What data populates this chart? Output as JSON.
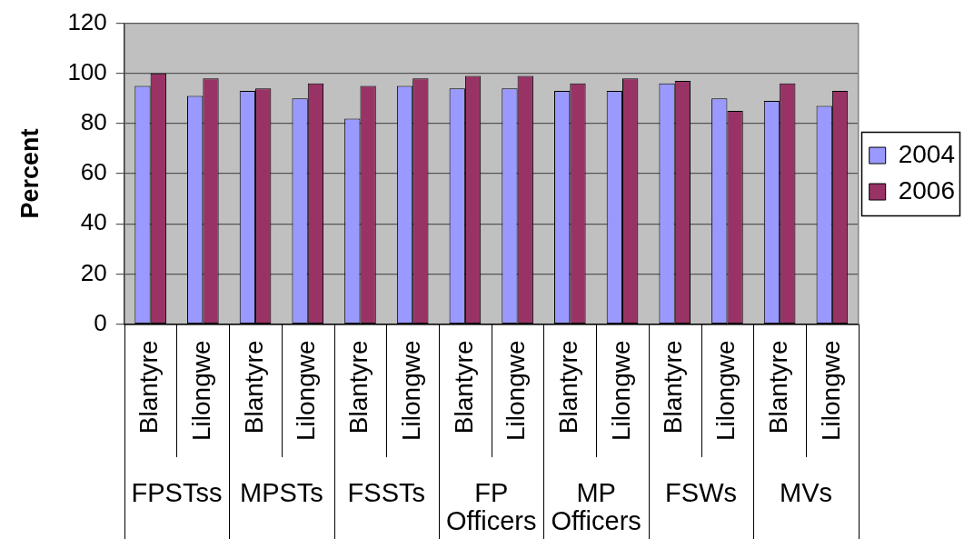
{
  "chart_data": {
    "type": "bar",
    "ylabel": "Percent",
    "categories": [
      "Blantyre",
      "Lilongwe",
      "Blantyre",
      "Lilongwe",
      "Blantyre",
      "Lilongwe",
      "Blantyre",
      "Lilongwe",
      "Blantyre",
      "Lilongwe",
      "Blantyre",
      "Lilongwe",
      "Blantyre",
      "Lilongwe"
    ],
    "series": [
      {
        "name": "2004",
        "color": "#9999ff",
        "values": [
          95,
          91,
          93,
          90,
          82,
          95,
          94,
          94,
          93,
          93,
          96,
          90,
          89,
          87
        ]
      },
      {
        "name": "2006",
        "color": "#993366",
        "values": [
          100,
          98,
          94,
          96,
          95,
          98,
          99,
          99,
          96,
          98,
          97,
          85,
          96,
          93
        ]
      }
    ],
    "ylim": [
      0,
      120
    ],
    "yticks": [
      0,
      20,
      40,
      60,
      80,
      100,
      120
    ],
    "grid": "y",
    "legend": "right",
    "annotations": [
      "FPSTss",
      "MPSTs",
      "FSSTs",
      "FP Officers",
      "MP Officers",
      "FSWs",
      "MVs"
    ]
  }
}
